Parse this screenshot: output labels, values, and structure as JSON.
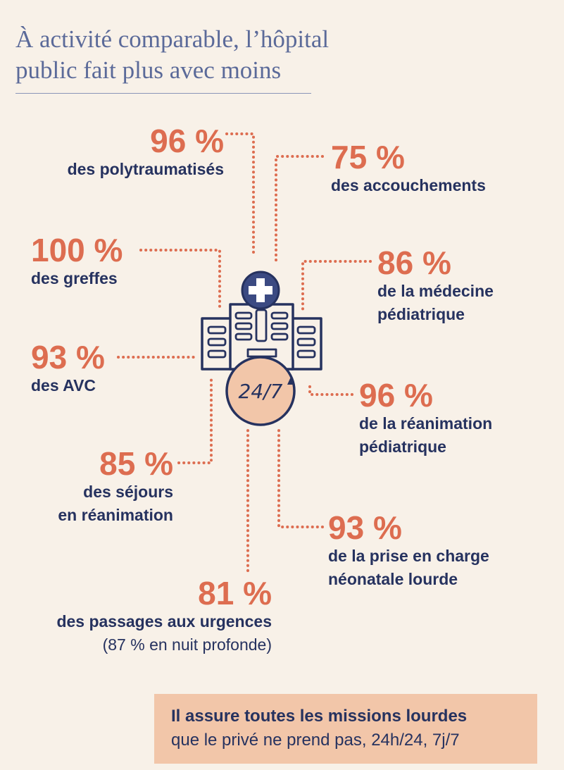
{
  "title_line1": "À activité comparable, l’hôpital",
  "title_line2": "public fait plus avec moins",
  "stats": {
    "polytrauma": {
      "pct": "96 %",
      "label": "des polytraumatisés"
    },
    "accouchements": {
      "pct": "75 %",
      "label": "des accouchements"
    },
    "greffes": {
      "pct": "100 %",
      "label": "des greffes"
    },
    "med_ped": {
      "pct": "86 %",
      "label1": "de la médecine",
      "label2": "pédiatrique"
    },
    "avc": {
      "pct": "93 %",
      "label": "des AVC"
    },
    "rea_ped": {
      "pct": "96 %",
      "label1": "de la réanimation",
      "label2": "pédiatrique"
    },
    "sejours": {
      "pct": "85 %",
      "label1": "des séjours",
      "label2": "en réanimation"
    },
    "neonat": {
      "pct": "93 %",
      "label1": "de la prise en charge",
      "label2": "néonatale lourde"
    },
    "urgences": {
      "pct": "81 %",
      "label": "des passages aux urgences",
      "note": "(87 % en nuit profonde)"
    }
  },
  "hospital_badge": "24/7",
  "callout": {
    "line1": "Il assure toutes les missions lourdes",
    "line2": "que le privé ne prend pas, 24h/24, 7j/7"
  },
  "colors": {
    "accent": "#dd6d50",
    "navy": "#26325f",
    "background": "#f8f1e8",
    "callout": "#f2c6a9"
  },
  "icons": [
    "hospital-building-icon",
    "medical-cross-icon",
    "clock-24-7-icon"
  ]
}
